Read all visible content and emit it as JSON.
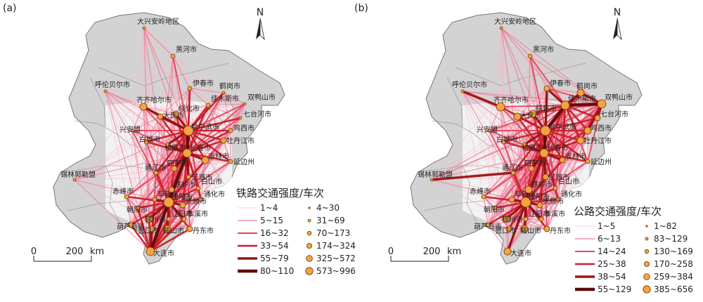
{
  "panels": [
    {
      "label": "(a)",
      "legend_title": "铁路交通强度/车次",
      "line_classes": [
        "1~4",
        "5~15",
        "16~32",
        "33~54",
        "55~79",
        "80~110"
      ],
      "node_classes": [
        "4~30",
        "31~69",
        "70~173",
        "174~324",
        "325~572",
        "573~996"
      ],
      "scale": {
        "zero": "0",
        "value": "200",
        "unit": "km"
      },
      "north": "N",
      "cities": [
        "大兴安岭地区",
        "黑河市",
        "呼伦贝尔市",
        "伊春市",
        "鹤岗市",
        "双鸭山市",
        "齐齐哈尔市",
        "绥化市",
        "佳木斯市",
        "七台河市",
        "大庆市",
        "鸡西市",
        "兴安盟",
        "哈尔滨市",
        "牡丹江市",
        "白城市",
        "松原市",
        "长春市",
        "吉林市",
        "延边州",
        "锡林郭勒盟",
        "通辽市",
        "辽源市",
        "四平市",
        "白山市",
        "赤峰市",
        "阜新市",
        "铁岭市",
        "通化市",
        "朝阳市",
        "沈阳市",
        "抚顺市",
        "本溪市",
        "葫芦岛市",
        "锦州市",
        "辽阳市",
        "营口市",
        "鞍山市",
        "丹东市",
        "大连市"
      ]
    },
    {
      "label": "(b)",
      "legend_title": "公路交通强度/车次",
      "line_classes": [
        "1~5",
        "6~13",
        "14~24",
        "25~38",
        "38~54",
        "55~129"
      ],
      "node_classes": [
        "1~82",
        "83~129",
        "130~169",
        "170~258",
        "259~384",
        "385~656"
      ],
      "scale": {
        "zero": "0",
        "value": "200",
        "unit": "km"
      },
      "north": "N",
      "cities": [
        "大兴安岭地区",
        "黑河市",
        "呼伦贝尔市",
        "伊春市",
        "鹤岗市",
        "双鸭山市",
        "齐齐哈尔市",
        "绥化市",
        "佳木斯市",
        "七台河市",
        "大庆市",
        "鸡西市",
        "兴安盟",
        "哈尔滨市",
        "牡丹江市",
        "白城市",
        "松原市",
        "长春市",
        "吉林市",
        "延边州",
        "锡林郭勒盟",
        "通辽市",
        "辽源市",
        "四平市",
        "白山市",
        "赤峰市",
        "阜新市",
        "铁岭市",
        "通化市",
        "朝阳市",
        "沈阳市",
        "抚顺市",
        "本溪市",
        "葫芦岛市",
        "锦州市",
        "辽阳市",
        "营口市",
        "鞍山市",
        "丹东市",
        "大连市"
      ]
    }
  ],
  "colors": {
    "region_fill": "#d3d3d3",
    "region_stroke": "#777777",
    "line_colors": [
      "#f6b8c8",
      "#ef7a98",
      "#e8445c",
      "#c91f28",
      "#9b1212",
      "#5e0a0a"
    ],
    "node_fill": "#f4a340",
    "node_stroke": "#6b3a08"
  }
}
